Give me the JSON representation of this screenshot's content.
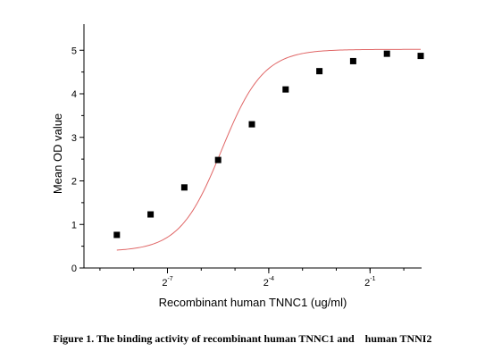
{
  "caption": "Figure 1. The binding activity of recombinant human TNNC1 and    human TNNI2",
  "chart_data": {
    "type": "scatter",
    "title": "",
    "xlabel": "Recombinant human TNNC1 (ug/ml)",
    "ylabel": "Mean OD value",
    "x_scale": "log2",
    "x_tick_labels": [
      {
        "base": "2",
        "exp": "-7"
      },
      {
        "base": "2",
        "exp": "-4"
      },
      {
        "base": "2",
        "exp": "-1"
      }
    ],
    "x_tick_exponents": [
      -7,
      -4,
      -1
    ],
    "xlim_log2": [
      -9.5,
      0.5
    ],
    "ylim": [
      0,
      5.6
    ],
    "y_ticks": [
      0,
      1,
      2,
      3,
      4,
      5
    ],
    "grid": false,
    "fit_curve_color": "#e06666",
    "marker_color": "#000000",
    "series": [
      {
        "x_log2": [
          -8.5,
          -7.5,
          -6.5,
          -5.5,
          -4.5,
          -3.5,
          -2.5,
          -1.5,
          -0.5,
          0.5
        ],
        "y": [
          0.76,
          1.23,
          1.85,
          2.48,
          3.3,
          4.1,
          4.52,
          4.75,
          4.92,
          4.87
        ]
      }
    ]
  }
}
